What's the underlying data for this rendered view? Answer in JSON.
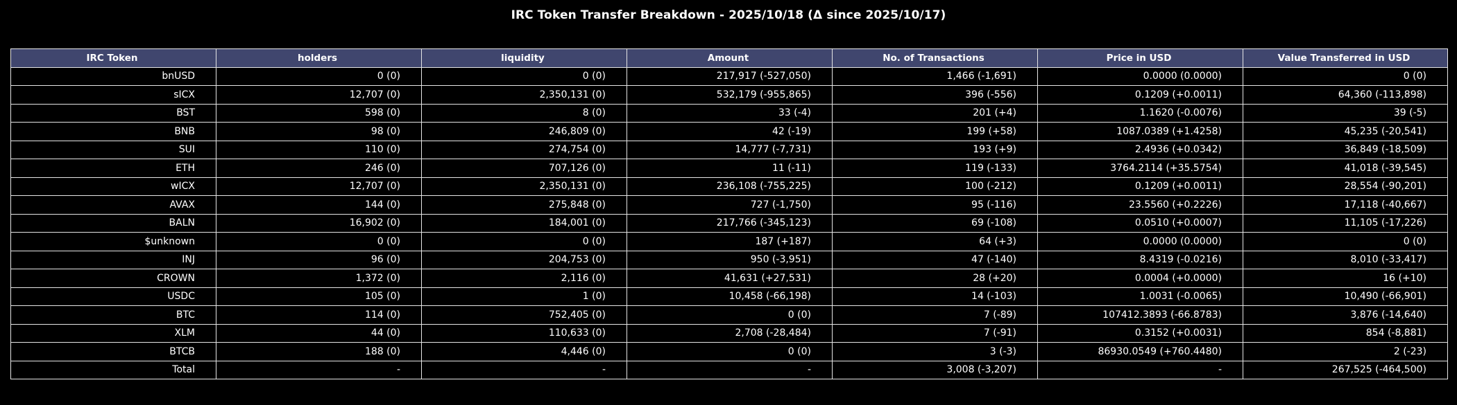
{
  "chart_data": {
    "type": "table",
    "title": "IRC Token Transfer Breakdown - 2025/10/18 (Δ since 2025/10/17)",
    "columns": [
      "IRC Token",
      "holders",
      "liquidity",
      "Amount",
      "No. of Transactions",
      "Price in USD",
      "Value Transferred in USD"
    ],
    "rows": [
      [
        "bnUSD",
        "0 (0)",
        "0 (0)",
        "217,917 (-527,050)",
        "1,466 (-1,691)",
        "0.0000 (0.0000)",
        "0 (0)"
      ],
      [
        "sICX",
        "12,707 (0)",
        "2,350,131 (0)",
        "532,179 (-955,865)",
        "396 (-556)",
        "0.1209 (+0.0011)",
        "64,360 (-113,898)"
      ],
      [
        "BST",
        "598 (0)",
        "8 (0)",
        "33 (-4)",
        "201 (+4)",
        "1.1620 (-0.0076)",
        "39 (-5)"
      ],
      [
        "BNB",
        "98 (0)",
        "246,809 (0)",
        "42 (-19)",
        "199 (+58)",
        "1087.0389 (+1.4258)",
        "45,235 (-20,541)"
      ],
      [
        "SUI",
        "110 (0)",
        "274,754 (0)",
        "14,777 (-7,731)",
        "193 (+9)",
        "2.4936 (+0.0342)",
        "36,849 (-18,509)"
      ],
      [
        "ETH",
        "246 (0)",
        "707,126 (0)",
        "11 (-11)",
        "119 (-133)",
        "3764.2114 (+35.5754)",
        "41,018 (-39,545)"
      ],
      [
        "wICX",
        "12,707 (0)",
        "2,350,131 (0)",
        "236,108 (-755,225)",
        "100 (-212)",
        "0.1209 (+0.0011)",
        "28,554 (-90,201)"
      ],
      [
        "AVAX",
        "144 (0)",
        "275,848 (0)",
        "727 (-1,750)",
        "95 (-116)",
        "23.5560 (+0.2226)",
        "17,118 (-40,667)"
      ],
      [
        "BALN",
        "16,902 (0)",
        "184,001 (0)",
        "217,766 (-345,123)",
        "69 (-108)",
        "0.0510 (+0.0007)",
        "11,105 (-17,226)"
      ],
      [
        "$unknown",
        "0 (0)",
        "0 (0)",
        "187 (+187)",
        "64 (+3)",
        "0.0000 (0.0000)",
        "0 (0)"
      ],
      [
        "INJ",
        "96 (0)",
        "204,753 (0)",
        "950 (-3,951)",
        "47 (-140)",
        "8.4319 (-0.0216)",
        "8,010 (-33,417)"
      ],
      [
        "CROWN",
        "1,372 (0)",
        "2,116 (0)",
        "41,631 (+27,531)",
        "28 (+20)",
        "0.0004 (+0.0000)",
        "16 (+10)"
      ],
      [
        "USDC",
        "105 (0)",
        "1 (0)",
        "10,458 (-66,198)",
        "14 (-103)",
        "1.0031 (-0.0065)",
        "10,490 (-66,901)"
      ],
      [
        "BTC",
        "114 (0)",
        "752,405 (0)",
        "0 (0)",
        "7 (-89)",
        "107412.3893 (-66.8783)",
        "3,876 (-14,640)"
      ],
      [
        "XLM",
        "44 (0)",
        "110,633 (0)",
        "2,708 (-28,484)",
        "7 (-91)",
        "0.3152 (+0.0031)",
        "854 (-8,881)"
      ],
      [
        "BTCB",
        "188 (0)",
        "4,446 (0)",
        "0 (0)",
        "3 (-3)",
        "86930.0549 (+760.4480)",
        "2 (-23)"
      ],
      [
        "Total",
        "-",
        "-",
        "-",
        "3,008 (-3,207)",
        "-",
        "267,525 (-464,500)"
      ]
    ],
    "header_color": "#40466e",
    "background_color": "#000000",
    "grid_color": "#e6e6e6",
    "text_color": "#ffffff"
  }
}
